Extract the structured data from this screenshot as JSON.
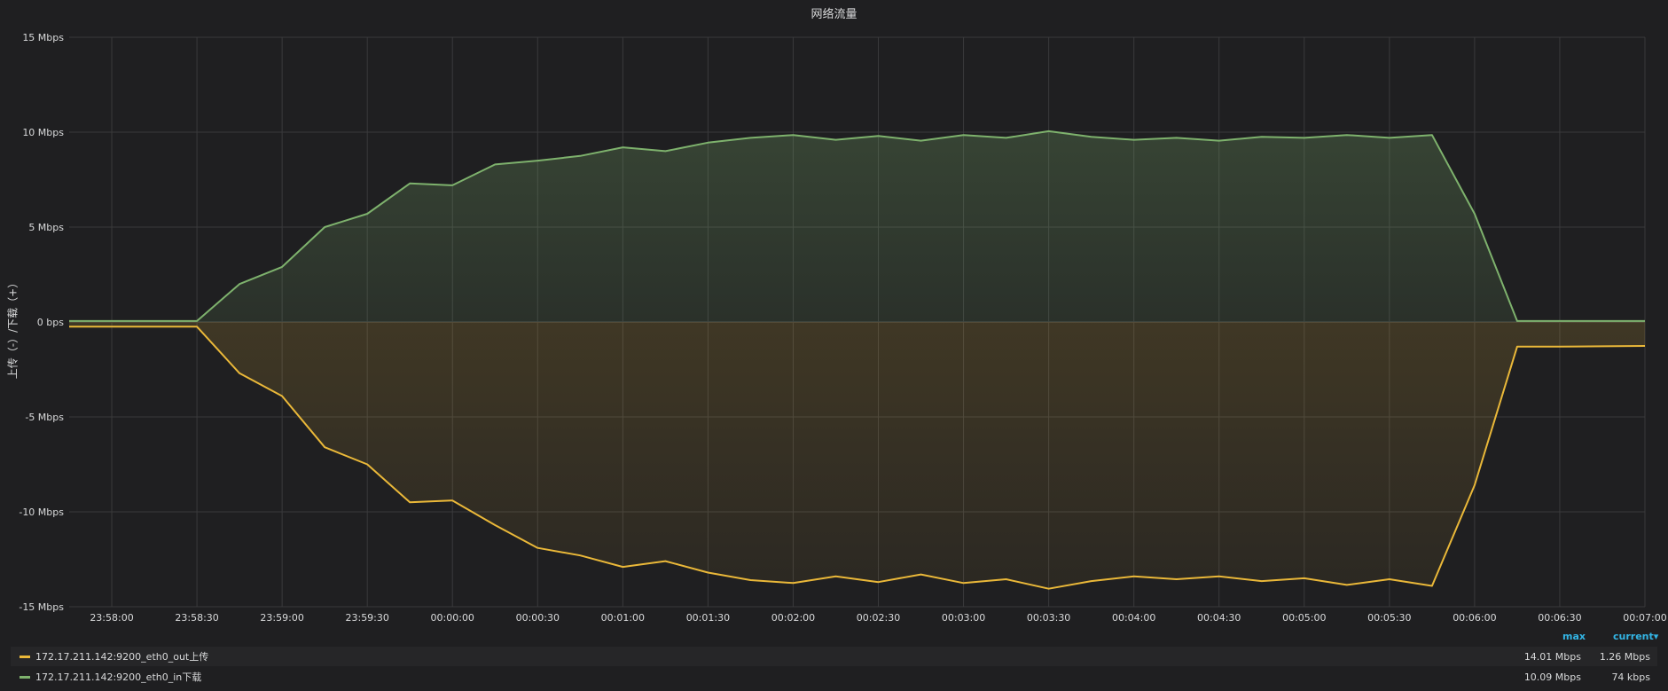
{
  "panel": {
    "title": "网络流量"
  },
  "legend": {
    "headers": {
      "max": "max",
      "current": "current▾"
    },
    "rows": [
      {
        "name": "172.17.211.142:9200_eth0_out上传",
        "color": "#eab839",
        "max": "14.01 Mbps",
        "current": "1.26 Mbps"
      },
      {
        "name": "172.17.211.142:9200_eth0_in下载",
        "color": "#7eb26d",
        "max": "10.09 Mbps",
        "current": "74 kbps"
      }
    ]
  },
  "chart_data": {
    "type": "area",
    "title": "网络流量",
    "xlabel": "",
    "ylabel": "上传（-）/下载（+）",
    "ylim": [
      -15,
      15
    ],
    "y_ticks": [
      15,
      10,
      5,
      0,
      -5,
      -10,
      -15
    ],
    "y_tick_labels": [
      "15 Mbps",
      "10 Mbps",
      "5 Mbps",
      "0 bps",
      "-5 Mbps",
      "-10 Mbps",
      "-15 Mbps"
    ],
    "x_ticks": [
      "23:58:00",
      "23:58:30",
      "23:59:00",
      "23:59:30",
      "00:00:00",
      "00:00:30",
      "00:01:00",
      "00:01:30",
      "00:02:00",
      "00:02:30",
      "00:03:00",
      "00:03:30",
      "00:04:00",
      "00:04:30",
      "00:05:00",
      "00:05:30",
      "00:06:00",
      "00:06:30",
      "00:07:00"
    ],
    "x_start": "23:57:45",
    "x_end": "00:07:00",
    "grid": true,
    "series": [
      {
        "name": "172.17.211.142:9200_eth0_in下载",
        "color": "#7eb26d",
        "x": [
          "23:57:45",
          "23:58:30",
          "23:58:45",
          "23:59:00",
          "23:59:15",
          "23:59:30",
          "23:59:45",
          "00:00:00",
          "00:00:15",
          "00:00:30",
          "00:00:45",
          "00:01:00",
          "00:01:15",
          "00:01:30",
          "00:01:45",
          "00:02:00",
          "00:02:15",
          "00:02:30",
          "00:02:45",
          "00:03:00",
          "00:03:15",
          "00:03:30",
          "00:03:45",
          "00:04:00",
          "00:04:15",
          "00:04:30",
          "00:04:45",
          "00:05:00",
          "00:05:15",
          "00:05:30",
          "00:05:45",
          "00:06:00",
          "00:06:15",
          "00:06:30",
          "00:06:45",
          "00:07:00"
        ],
        "values": [
          0.05,
          0.05,
          2.0,
          2.9,
          5.0,
          5.7,
          7.3,
          7.2,
          8.3,
          8.5,
          8.75,
          9.2,
          9.0,
          9.45,
          9.7,
          9.85,
          9.6,
          9.8,
          9.55,
          9.85,
          9.7,
          10.05,
          9.75,
          9.6,
          9.7,
          9.55,
          9.75,
          9.7,
          9.85,
          9.7,
          9.85,
          5.7,
          0.05,
          0.05,
          0.05,
          0.05
        ]
      },
      {
        "name": "172.17.211.142:9200_eth0_out上传",
        "color": "#eab839",
        "x": [
          "23:57:45",
          "23:58:30",
          "23:58:45",
          "23:59:00",
          "23:59:15",
          "23:59:30",
          "23:59:45",
          "00:00:00",
          "00:00:15",
          "00:00:30",
          "00:00:45",
          "00:01:00",
          "00:01:15",
          "00:01:30",
          "00:01:45",
          "00:02:00",
          "00:02:15",
          "00:02:30",
          "00:02:45",
          "00:03:00",
          "00:03:15",
          "00:03:30",
          "00:03:45",
          "00:04:00",
          "00:04:15",
          "00:04:30",
          "00:04:45",
          "00:05:00",
          "00:05:15",
          "00:05:30",
          "00:05:45",
          "00:06:00",
          "00:06:15",
          "00:06:30",
          "00:06:45",
          "00:07:00"
        ],
        "values": [
          -0.25,
          -0.25,
          -2.7,
          -3.9,
          -6.6,
          -7.5,
          -9.5,
          -9.4,
          -10.7,
          -11.9,
          -12.3,
          -12.9,
          -12.6,
          -13.2,
          -13.6,
          -13.75,
          -13.4,
          -13.7,
          -13.3,
          -13.75,
          -13.55,
          -14.05,
          -13.65,
          -13.4,
          -13.55,
          -13.4,
          -13.65,
          -13.5,
          -13.85,
          -13.55,
          -13.9,
          -8.6,
          -1.3,
          -1.3,
          -1.28,
          -1.26
        ]
      }
    ]
  }
}
